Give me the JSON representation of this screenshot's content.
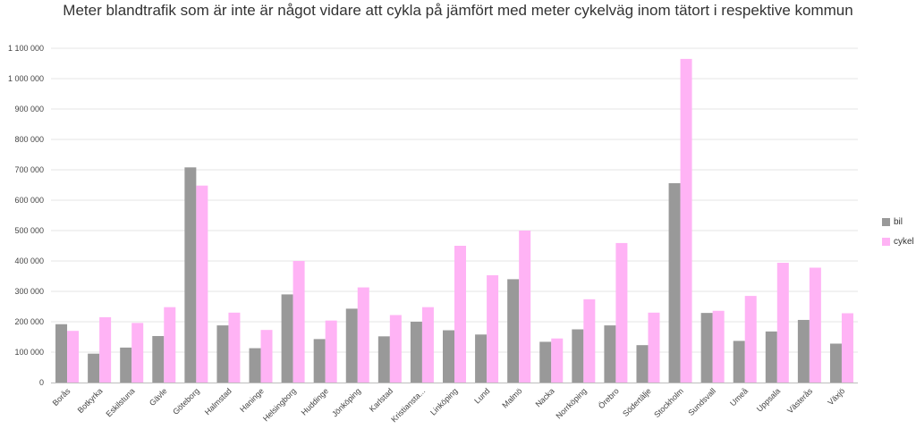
{
  "chart_data": {
    "type": "bar",
    "title": "Meter blandtrafik som är inte är något vidare att cykla på jämfört med meter cykelväg inom tätort i respektive kommun",
    "categories": [
      "Borås",
      "Botkyrka",
      "Eskilstuna",
      "Gävle",
      "Göteborg",
      "Halmstad",
      "Haninge",
      "Helsingborg",
      "Huddinge",
      "Jönköping",
      "Karlstad",
      "Kristiansta...",
      "Linköping",
      "Lund",
      "Malmö",
      "Nacka",
      "Norrköping",
      "Örebro",
      "Södertälje",
      "Stockholm",
      "Sundsvall",
      "Umeå",
      "Uppsala",
      "Västerås",
      "Växjö"
    ],
    "series": [
      {
        "name": "bil",
        "color": "#999999",
        "values": [
          192000,
          95000,
          115000,
          153000,
          708000,
          188000,
          113000,
          290000,
          143000,
          243000,
          152000,
          200000,
          172000,
          158000,
          340000,
          134000,
          175000,
          188000,
          123000,
          656000,
          229000,
          137000,
          168000,
          206000,
          128000
        ]
      },
      {
        "name": "cykel",
        "color": "#ffb3f5",
        "values": [
          170000,
          215000,
          196000,
          248000,
          648000,
          230000,
          173000,
          400000,
          204000,
          313000,
          222000,
          248000,
          450000,
          353000,
          500000,
          145000,
          274000,
          459000,
          230000,
          1065000,
          236000,
          285000,
          394000,
          378000,
          228000
        ]
      }
    ],
    "y_ticks": [
      "0",
      "100 000",
      "200 000",
      "300 000",
      "400 000",
      "500 000",
      "600 000",
      "700 000",
      "800 000",
      "900 000",
      "1 000 000",
      "1 100 000"
    ],
    "ylim": [
      0,
      1100000
    ],
    "y_step": 100000,
    "xlabel": "",
    "ylabel": "",
    "legend_position": "right",
    "grid": true
  }
}
